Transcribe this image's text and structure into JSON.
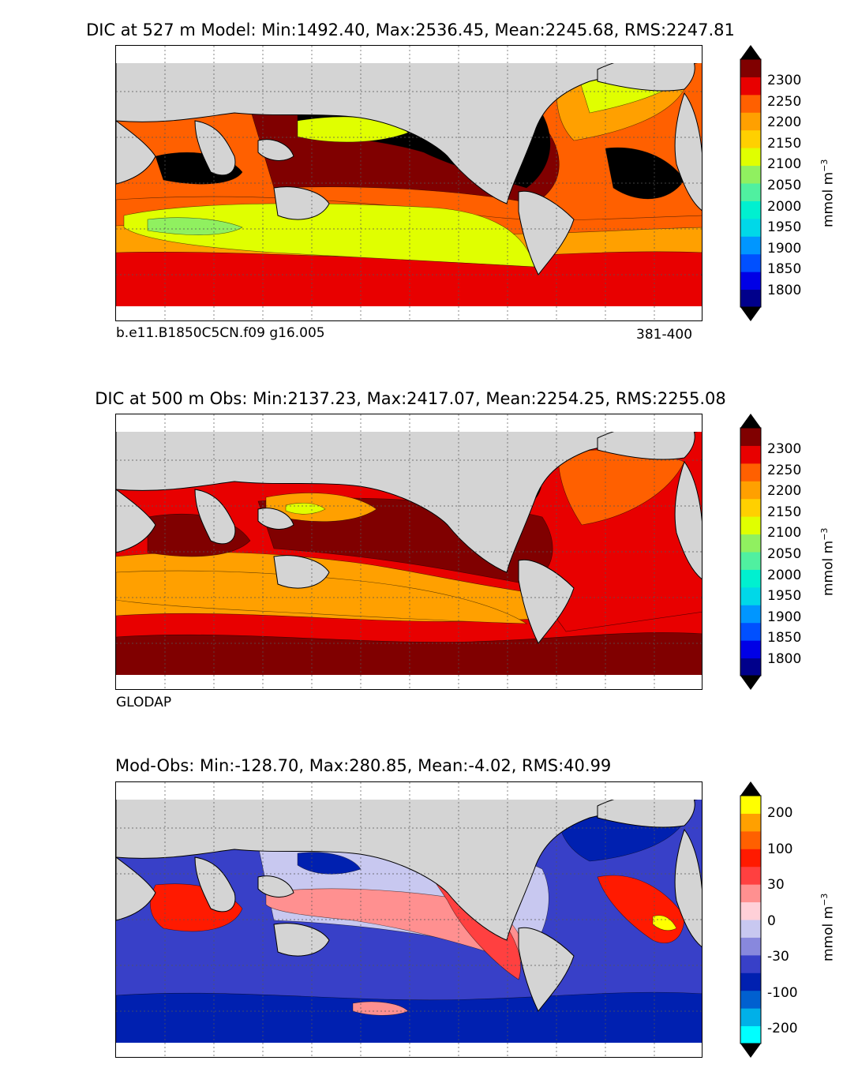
{
  "chart_data": [
    {
      "type": "contour-map",
      "title": "DIC at 527 m Model: Min:1492.40, Max:2536.45, Mean:2245.68, RMS:2247.81",
      "left_label": "b.e11.B1850C5CN.f09 g16.005",
      "right_label": "381-400",
      "colorbar": {
        "unit_label": "mmol m",
        "unit_exp": "−3",
        "tick_labels": [
          "2300",
          "2250",
          "2200",
          "2150",
          "2100",
          "2050",
          "2000",
          "1950",
          "1900",
          "1850",
          "1800"
        ],
        "levels": [
          1775,
          1800,
          1825,
          1850,
          1875,
          1900,
          1925,
          1950,
          1975,
          2000,
          2025,
          2050,
          2075,
          2100,
          2125,
          2150,
          2175,
          2200,
          2225,
          2250,
          2275,
          2300,
          2325
        ],
        "colors": [
          "#00008b",
          "#0000e6",
          "#0050ff",
          "#0096ff",
          "#00d8e8",
          "#00f0d0",
          "#50f0a0",
          "#90f060",
          "#e0ff00",
          "#ffd000",
          "#ffa000",
          "#ff6000",
          "#e80000",
          "#800000"
        ]
      },
      "regions": [
        {
          "name": "north-pacific",
          "color": "#000000",
          "value": 2340
        },
        {
          "name": "tropical-indian",
          "color": "#000000",
          "value": 2340
        },
        {
          "name": "south-subtropical",
          "color": "#e8ff0a",
          "value": 2135
        },
        {
          "name": "southern-ocean",
          "color": "#e80000",
          "value": 2270
        }
      ]
    },
    {
      "type": "contour-map",
      "title": "DIC at 500 m Obs: Min:2137.23, Max:2417.07, Mean:2254.25, RMS:2255.08",
      "left_label": "GLODAP",
      "colorbar": {
        "unit_label": "mmol m",
        "unit_exp": "−3",
        "tick_labels": [
          "2300",
          "2250",
          "2200",
          "2150",
          "2100",
          "2050",
          "2000",
          "1950",
          "1900",
          "1850",
          "1800"
        ]
      },
      "regions": [
        {
          "name": "north-pacific",
          "color": "#000000",
          "value": 2340
        },
        {
          "name": "tropical-pacific",
          "color": "#800000",
          "value": 2310
        },
        {
          "name": "south-subtropical",
          "color": "#ffa000",
          "value": 2190
        },
        {
          "name": "southern-ocean",
          "color": "#800000",
          "value": 2310
        }
      ]
    },
    {
      "type": "contour-map",
      "title": "Mod-Obs: Min:-128.70, Max:280.85, Mean:-4.02, RMS:40.99",
      "colorbar": {
        "unit_label": "mmol m",
        "unit_exp": "−3",
        "tick_labels": [
          "200",
          "100",
          "30",
          "0",
          "-30",
          "-100",
          "-200"
        ],
        "colors": [
          "#00ffff",
          "#00b0e8",
          "#0060d0",
          "#0020b0",
          "#3840c8",
          "#8888dd",
          "#c8c8f0",
          "#ffd0d8",
          "#ff9090",
          "#ff4040",
          "#ff1a00",
          "#ff6000",
          "#ffa000",
          "#ffff00"
        ]
      },
      "regions": [
        {
          "name": "southern-ocean",
          "color": "#3840c8",
          "value": -40
        },
        {
          "name": "eastern-pacific",
          "color": "#ff4040",
          "value": 40
        },
        {
          "name": "north-atlantic",
          "color": "#0020b0",
          "value": -90
        }
      ]
    }
  ],
  "palette": {
    "land": "#d4d4d4",
    "ice": "#ffffff",
    "coast": "#000000",
    "grid": "#555555"
  }
}
